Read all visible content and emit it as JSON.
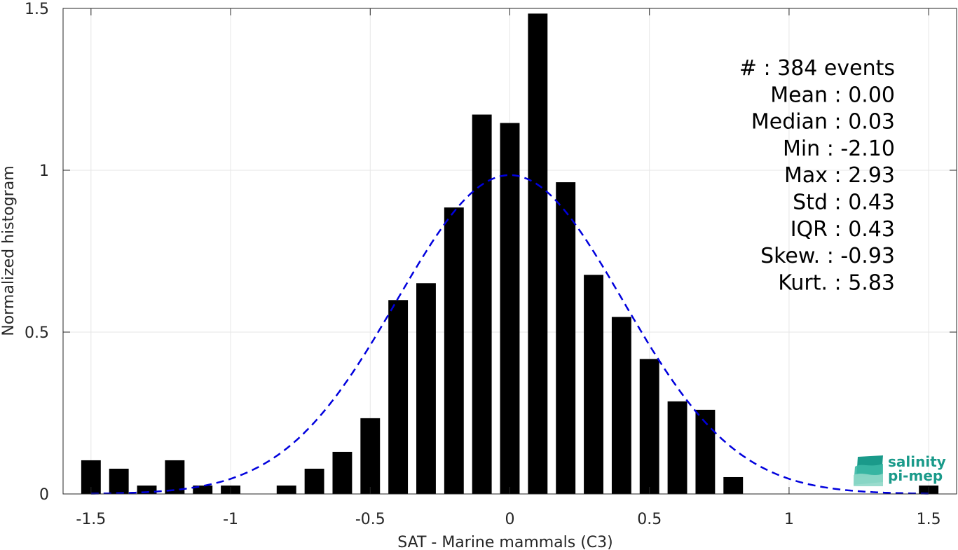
{
  "chart_data": {
    "type": "bar",
    "xlabel": "SAT - Marine mammals (C3)",
    "ylabel": "Normalized histogram",
    "xlim": [
      -1.6,
      1.6
    ],
    "ylim": [
      0,
      1.5
    ],
    "x_ticks": [
      -1.5,
      -1,
      -0.5,
      0,
      0.5,
      1,
      1.5
    ],
    "x_tick_labels": [
      "-1.5",
      "-1",
      "-0.5",
      "0",
      "0.5",
      "1",
      "1.5"
    ],
    "y_ticks": [
      0,
      0.5,
      1,
      1.5
    ],
    "y_tick_labels": [
      "0",
      "0.5",
      "1",
      "1.5"
    ],
    "grid": true,
    "bar_color": "#000000",
    "bins": {
      "x": [
        -1.5,
        -1.4,
        -1.3,
        -1.2,
        -1.1,
        -1.0,
        -0.9,
        -0.8,
        -0.7,
        -0.6,
        -0.5,
        -0.4,
        -0.3,
        -0.2,
        -0.1,
        0.0,
        0.1,
        0.2,
        0.3,
        0.4,
        0.5,
        0.6,
        0.7,
        0.8,
        0.9,
        1.0,
        1.1,
        1.2,
        1.3,
        1.4,
        1.5
      ],
      "values": [
        0.104,
        0.078,
        0.026,
        0.104,
        0.026,
        0.026,
        0.0,
        0.026,
        0.078,
        0.13,
        0.234,
        0.599,
        0.651,
        0.885,
        1.172,
        1.146,
        1.484,
        0.963,
        0.677,
        0.547,
        0.417,
        0.286,
        0.26,
        0.052,
        0.0,
        0.0,
        0.0,
        0.0,
        0.0,
        0.0,
        0.026
      ]
    },
    "fit_curve": {
      "type": "normal",
      "mean": 0.0,
      "std": 0.405,
      "color": "#0000dd",
      "style": "dashed",
      "x_range": [
        -1.5,
        1.5
      ]
    },
    "stats": [
      "#  : 384 events",
      "Mean : 0.00",
      "Median : 0.03",
      "Min : -2.10",
      "Max : 2.93",
      "Std : 0.43",
      "IQR : 0.43",
      "Skew. : -0.93",
      "Kurt. : 5.83"
    ]
  },
  "logo": {
    "line1": "salinity",
    "line2": "pi-mep"
  }
}
